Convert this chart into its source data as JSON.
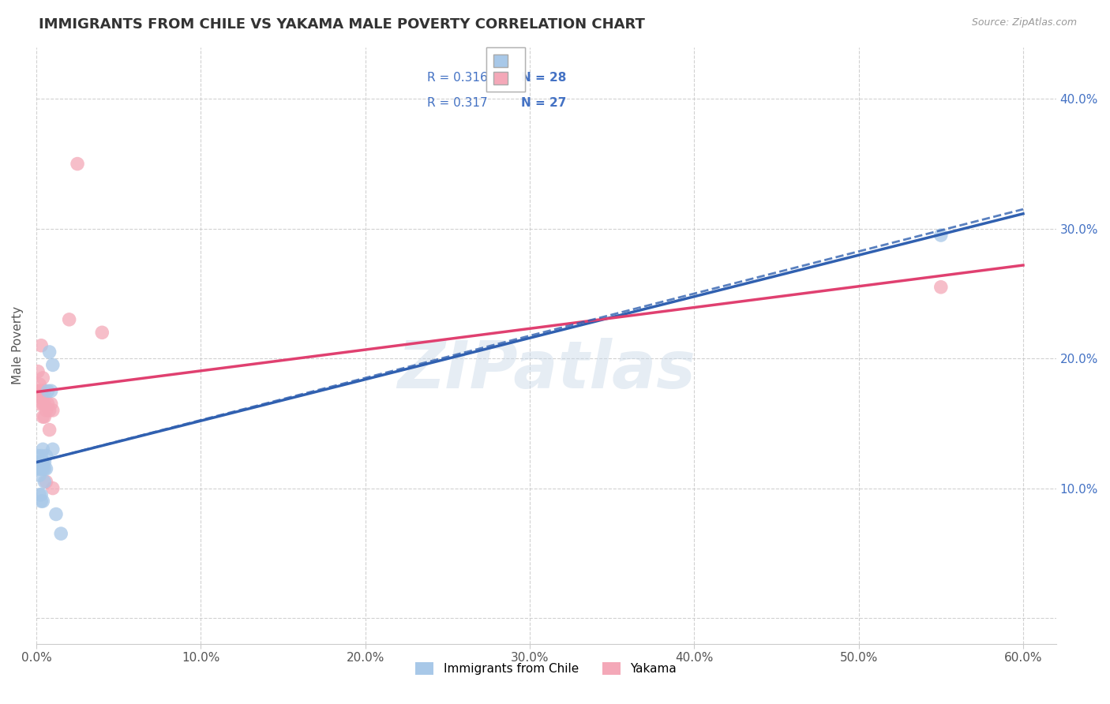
{
  "title": "IMMIGRANTS FROM CHILE VS YAKAMA MALE POVERTY CORRELATION CHART",
  "source": "Source: ZipAtlas.com",
  "ylabel": "Male Poverty",
  "xlim": [
    0.0,
    0.62
  ],
  "ylim": [
    -0.02,
    0.44
  ],
  "xtick_positions": [
    0.0,
    0.1,
    0.2,
    0.3,
    0.4,
    0.5,
    0.6
  ],
  "xtick_labels": [
    "0.0%",
    "10.0%",
    "20.0%",
    "30.0%",
    "40.0%",
    "50.0%",
    "60.0%"
  ],
  "ytick_positions": [
    0.0,
    0.1,
    0.2,
    0.3,
    0.4
  ],
  "ytick_labels_right": [
    "",
    "10.0%",
    "20.0%",
    "30.0%",
    "40.0%"
  ],
  "watermark": "ZIPatlas",
  "series1_label": "Immigrants from Chile",
  "series2_label": "Yakama",
  "series1_color": "#a8c8e8",
  "series2_color": "#f4a8b8",
  "series1_line_color": "#3060b0",
  "series2_line_color": "#e04070",
  "R1": "0.316",
  "N1": "28",
  "R2": "0.317",
  "N2": "27",
  "legend_r_color": "#4472c4",
  "legend_n_color": "#4472c4",
  "grid_color": "#cccccc",
  "background_color": "#ffffff",
  "title_fontsize": 13,
  "axis_label_fontsize": 11,
  "tick_fontsize": 11,
  "watermark_fontsize": 60,
  "watermark_color": "#c8d8e8",
  "watermark_alpha": 0.45,
  "series1_x": [
    0.001,
    0.001,
    0.001,
    0.002,
    0.002,
    0.002,
    0.002,
    0.003,
    0.003,
    0.003,
    0.003,
    0.004,
    0.004,
    0.004,
    0.004,
    0.005,
    0.005,
    0.005,
    0.006,
    0.006,
    0.007,
    0.008,
    0.009,
    0.01,
    0.01,
    0.012,
    0.015,
    0.55
  ],
  "series1_y": [
    0.115,
    0.12,
    0.125,
    0.095,
    0.11,
    0.115,
    0.12,
    0.09,
    0.095,
    0.115,
    0.125,
    0.09,
    0.115,
    0.12,
    0.13,
    0.105,
    0.115,
    0.12,
    0.115,
    0.125,
    0.175,
    0.205,
    0.175,
    0.13,
    0.195,
    0.08,
    0.065,
    0.295
  ],
  "series2_x": [
    0.001,
    0.001,
    0.002,
    0.002,
    0.002,
    0.003,
    0.003,
    0.003,
    0.004,
    0.004,
    0.004,
    0.004,
    0.005,
    0.005,
    0.005,
    0.006,
    0.006,
    0.007,
    0.008,
    0.008,
    0.009,
    0.01,
    0.01,
    0.02,
    0.025,
    0.04,
    0.55
  ],
  "series2_y": [
    0.175,
    0.19,
    0.165,
    0.175,
    0.18,
    0.17,
    0.175,
    0.21,
    0.155,
    0.165,
    0.17,
    0.185,
    0.155,
    0.165,
    0.175,
    0.105,
    0.16,
    0.165,
    0.145,
    0.16,
    0.165,
    0.1,
    0.16,
    0.23,
    0.35,
    0.22,
    0.255
  ],
  "line1_x0": 0.0,
  "line1_y0": 0.12,
  "line1_x1": 0.6,
  "line1_y1": 0.295,
  "line2_x0": 0.0,
  "line2_y0": 0.175,
  "line2_x1": 0.6,
  "line2_y1": 0.272,
  "dashed_line_x0": 0.0,
  "dashed_line_y0": 0.12,
  "dashed_line_x1": 0.6,
  "dashed_line_y1": 0.315
}
